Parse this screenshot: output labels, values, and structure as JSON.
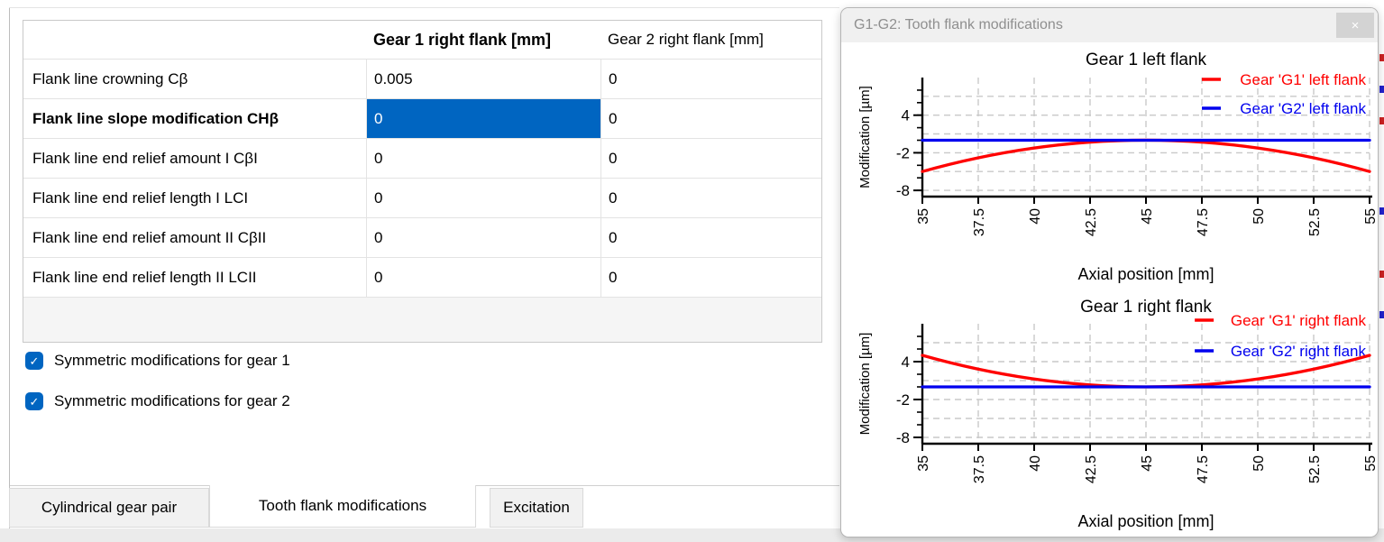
{
  "table": {
    "columns": [
      {
        "label": ""
      },
      {
        "label": "Gear 1 right flank [mm]",
        "bold": true
      },
      {
        "label": "Gear 2 right flank [mm]",
        "bold": false
      }
    ],
    "rows": [
      {
        "label": "Flank line crowning Cβ",
        "bold": false,
        "values": [
          "0.005",
          "0"
        ],
        "selected_col": null
      },
      {
        "label": "Flank line slope modification CHβ",
        "bold": true,
        "values": [
          "0",
          "0"
        ],
        "selected_col": 0
      },
      {
        "label": "Flank line end relief amount I CβI",
        "bold": false,
        "values": [
          "0",
          "0"
        ],
        "selected_col": null
      },
      {
        "label": "Flank line end relief length I LCI",
        "bold": false,
        "values": [
          "0",
          "0"
        ],
        "selected_col": null
      },
      {
        "label": "Flank line end relief amount II CβII",
        "bold": false,
        "values": [
          "0",
          "0"
        ],
        "selected_col": null
      },
      {
        "label": "Flank line end relief length II LCII",
        "bold": false,
        "values": [
          "0",
          "0"
        ],
        "selected_col": null
      }
    ]
  },
  "checkboxes": [
    {
      "label": "Symmetric modifications for gear 1",
      "checked": true
    },
    {
      "label": "Symmetric modifications for gear 2",
      "checked": true
    }
  ],
  "tabs": [
    {
      "label": "Cylindrical gear pair",
      "active": false
    },
    {
      "label": "Tooth flank modifications",
      "active": true
    },
    {
      "label": "Excitation",
      "active": false
    }
  ],
  "panel": {
    "title": "G1-G2: Tooth flank modifications",
    "close": "×"
  },
  "colors": {
    "selection_blue": "#0065c1",
    "checkbox_blue": "#0065c1",
    "series_red": "#ff0000",
    "series_blue": "#0000ee",
    "grid_gray": "#c9c9c9",
    "axis_black": "#000000",
    "panel_title_gray": "#8f8f8f"
  },
  "chart_data": [
    {
      "type": "line",
      "title": "Gear 1 left flank",
      "xlabel": "Axial position [mm]",
      "ylabel": "Modification [µm]",
      "xlim": [
        35,
        55
      ],
      "ylim": [
        -9,
        10
      ],
      "xticks": [
        35,
        37.5,
        40,
        42.5,
        45,
        47.5,
        50,
        52.5,
        55
      ],
      "ytick_labels": [
        4,
        -2,
        -8
      ],
      "yticks_minor": [
        8,
        6,
        4,
        2,
        0,
        -2,
        -4,
        -6,
        -8
      ],
      "ygrid": [
        7,
        4,
        1,
        -2,
        -5,
        -8
      ],
      "grid": "dashed",
      "legend_position": "top-right",
      "x": [
        35,
        37.5,
        40,
        42.5,
        45,
        47.5,
        50,
        52.5,
        55
      ],
      "series": [
        {
          "name": "Gear 'G1' left flank",
          "color": "#ff0000",
          "y": [
            -5,
            -2.81,
            -1.25,
            -0.31,
            0,
            -0.31,
            -1.25,
            -2.81,
            -5
          ]
        },
        {
          "name": "Gear 'G2' left flank",
          "color": "#0000ee",
          "y": [
            0,
            0,
            0,
            0,
            0,
            0,
            0,
            0,
            0
          ]
        }
      ]
    },
    {
      "type": "line",
      "title": "Gear 1 right flank",
      "xlabel": "Axial position [mm]",
      "ylabel": "Modification [µm]",
      "xlim": [
        35,
        55
      ],
      "ylim": [
        -9,
        10
      ],
      "xticks": [
        35,
        37.5,
        40,
        42.5,
        45,
        47.5,
        50,
        52.5,
        55
      ],
      "ytick_labels": [
        4,
        -2,
        -8
      ],
      "yticks_minor": [
        8,
        6,
        4,
        2,
        0,
        -2,
        -4,
        -6,
        -8
      ],
      "ygrid": [
        7,
        4,
        1,
        -2,
        -5,
        -8
      ],
      "grid": "dashed",
      "legend_position": "top-right",
      "x": [
        35,
        37.5,
        40,
        42.5,
        45,
        47.5,
        50,
        52.5,
        55
      ],
      "series": [
        {
          "name": "Gear 'G1' right flank",
          "color": "#ff0000",
          "y": [
            5,
            2.81,
            1.25,
            0.31,
            0,
            0.31,
            1.25,
            2.81,
            5
          ]
        },
        {
          "name": "Gear 'G2' right flank",
          "color": "#0000ee",
          "y": [
            0,
            0,
            0,
            0,
            0,
            0,
            0,
            0,
            0
          ]
        }
      ]
    }
  ]
}
